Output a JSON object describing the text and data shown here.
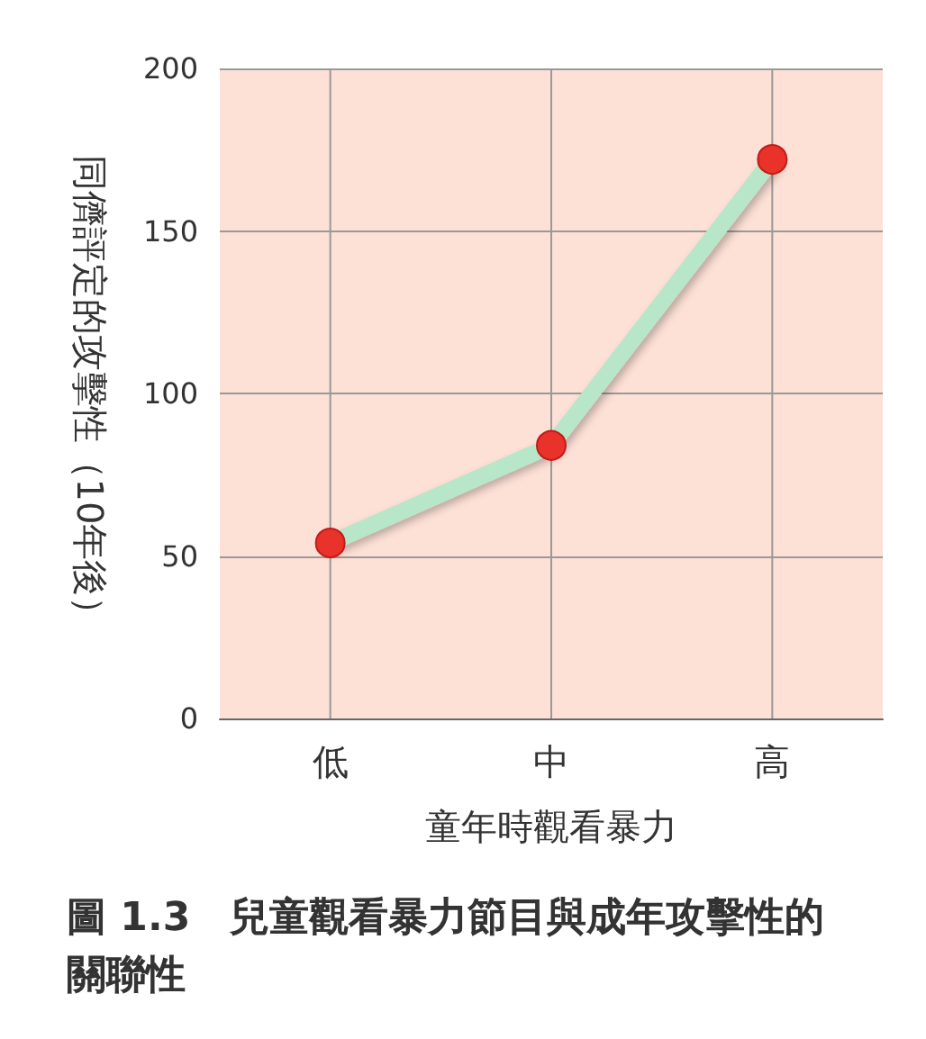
{
  "chart_data": {
    "type": "line",
    "title": "圖 1.3　兒童觀看暴力節目與成年攻擊性的關聯性",
    "xlabel": "童年時觀看暴力",
    "ylabel": "同儕評定的攻擊性（10年後）",
    "categories": [
      "低",
      "中",
      "高"
    ],
    "series": [
      {
        "color": "#b8e6c8",
        "values": [
          54,
          84,
          172
        ]
      }
    ],
    "ylim": [
      0,
      200
    ],
    "yticks": [
      0,
      50,
      100,
      150,
      200
    ],
    "grid": true,
    "marker": "circle",
    "line_style": "solid"
  }
}
